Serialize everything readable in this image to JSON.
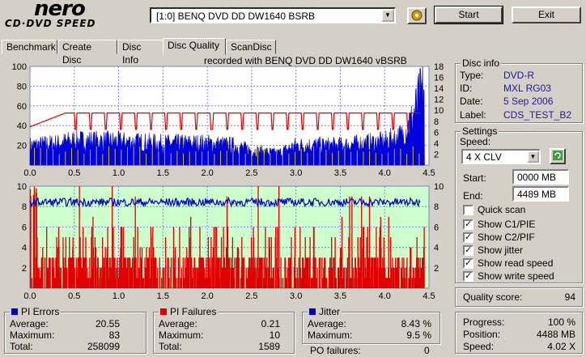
{
  "app": {
    "logo_top": "nero",
    "logo_bottom": "CD·DVD SPEED"
  },
  "toolbar": {
    "drive": "[1:0]   BENQ DVD DD DW1640 BSRB",
    "start_label": "Start",
    "exit_label": "Exit"
  },
  "tabs": [
    "Benchmark",
    "Create Disc",
    "Disc Info",
    "Disc Quality",
    "ScanDisc"
  ],
  "active_tab": "Disc Quality",
  "recorded_with": "recorded with BENQ     DVD DD DW1640     vBSRB",
  "disc_info": {
    "title": "Disc info",
    "rows": [
      {
        "label": "Type:",
        "value": "DVD-R"
      },
      {
        "label": "ID:",
        "value": "MXL RG03"
      },
      {
        "label": "Date:",
        "value": "5 Sep 2006"
      },
      {
        "label": "Label:",
        "value": "CDS_TEST_B2"
      }
    ]
  },
  "settings": {
    "title": "Settings",
    "speed_label": "Speed:",
    "speed_value": "4 X CLV",
    "start_label": "Start:",
    "start_value": "0000 MB",
    "end_label": "End:",
    "end_value": "4489 MB",
    "checks": [
      {
        "label": "Quick scan",
        "checked": false
      },
      {
        "label": "Show C1/PIE",
        "checked": true
      },
      {
        "label": "Show C2/PIF",
        "checked": true
      },
      {
        "label": "Show jitter",
        "checked": true
      },
      {
        "label": "Show read speed",
        "checked": true
      },
      {
        "label": "Show write speed",
        "checked": true
      }
    ]
  },
  "quality": {
    "label": "Quality score:",
    "value": "94"
  },
  "progress": {
    "rows": [
      {
        "label": "Progress:",
        "value": "100 %"
      },
      {
        "label": "Position:",
        "value": "4488 MB"
      },
      {
        "label": "Speed:",
        "value": "4.02 X"
      }
    ]
  },
  "pi_errors": {
    "title": "PI Errors",
    "color": "#0000c0",
    "rows": [
      {
        "label": "Average:",
        "value": "20.55"
      },
      {
        "label": "Maximum:",
        "value": "83"
      },
      {
        "label": "Total:",
        "value": "258099"
      }
    ]
  },
  "pi_failures": {
    "title": "PI Failures",
    "color": "#e00000",
    "rows": [
      {
        "label": "Average:",
        "value": "0.21"
      },
      {
        "label": "Maximum:",
        "value": "10"
      },
      {
        "label": "Total:",
        "value": "1589"
      }
    ]
  },
  "jitter": {
    "title": "Jitter",
    "color": "#0000c0",
    "rows": [
      {
        "label": "Average:",
        "value": "8.43 %"
      },
      {
        "label": "Maximum:",
        "value": "9.5 %"
      }
    ],
    "po_label": "PO failures:",
    "po_value": "0"
  },
  "chart_data": [
    {
      "type": "area",
      "x_ticks": [
        "0.0",
        "0.5",
        "1.0",
        "1.5",
        "2.0",
        "2.5",
        "3.0",
        "3.5",
        "4.0",
        "4.5"
      ],
      "y_left_ticks": [
        "100",
        "80",
        "60",
        "40",
        "20"
      ],
      "y_right_ticks": [
        "18",
        "16",
        "14",
        "12",
        "10",
        "8",
        "6",
        "4",
        "2"
      ],
      "xlim": [
        0,
        4.5
      ],
      "ylim_left": [
        0,
        100
      ],
      "ylim_right": [
        0,
        18
      ],
      "series": [
        {
          "values": "PI errors (blue area)",
          "color": "#0000e0"
        },
        {
          "values": "read speed (red line)",
          "color": "#e00000"
        },
        {
          "values": "write speed (yellow)",
          "color": "#e0e000"
        }
      ],
      "pi_profile": [
        [
          0,
          20
        ],
        [
          0.3,
          22
        ],
        [
          0.5,
          25
        ],
        [
          1.0,
          24
        ],
        [
          1.5,
          22
        ],
        [
          2.0,
          22
        ],
        [
          2.3,
          20
        ],
        [
          2.5,
          15
        ],
        [
          2.8,
          12
        ],
        [
          3.0,
          20
        ],
        [
          3.5,
          20
        ],
        [
          4.0,
          24
        ],
        [
          4.2,
          30
        ],
        [
          4.3,
          45
        ],
        [
          4.4,
          70
        ],
        [
          4.45,
          80
        ]
      ],
      "speed_profile": [
        [
          0,
          7
        ],
        [
          0.4,
          9.5
        ],
        [
          4.4,
          9.5
        ]
      ]
    },
    {
      "type": "bar",
      "x_ticks": [
        "0.0",
        "0.5",
        "1.0",
        "1.5",
        "2.0",
        "2.5",
        "3.0",
        "3.5",
        "4.0",
        "4.5"
      ],
      "y_left_ticks": [
        "10",
        "8",
        "6",
        "4",
        "2"
      ],
      "y_right_ticks": [
        "10",
        "8",
        "6",
        "4",
        "2"
      ],
      "xlim": [
        0,
        4.5
      ],
      "ylim": [
        0,
        10
      ],
      "series": [
        {
          "values": "PI failures (red bars)",
          "color": "#e00000"
        },
        {
          "values": "jitter % (blue line)",
          "color": "#0000c0"
        }
      ],
      "jitter_avg": 8.43,
      "pif_max": 10
    }
  ],
  "colors": {
    "plot_bg_top": "#ffffff",
    "plot_bg_bottom": "#ccffcc",
    "grid": "#9090c0"
  }
}
